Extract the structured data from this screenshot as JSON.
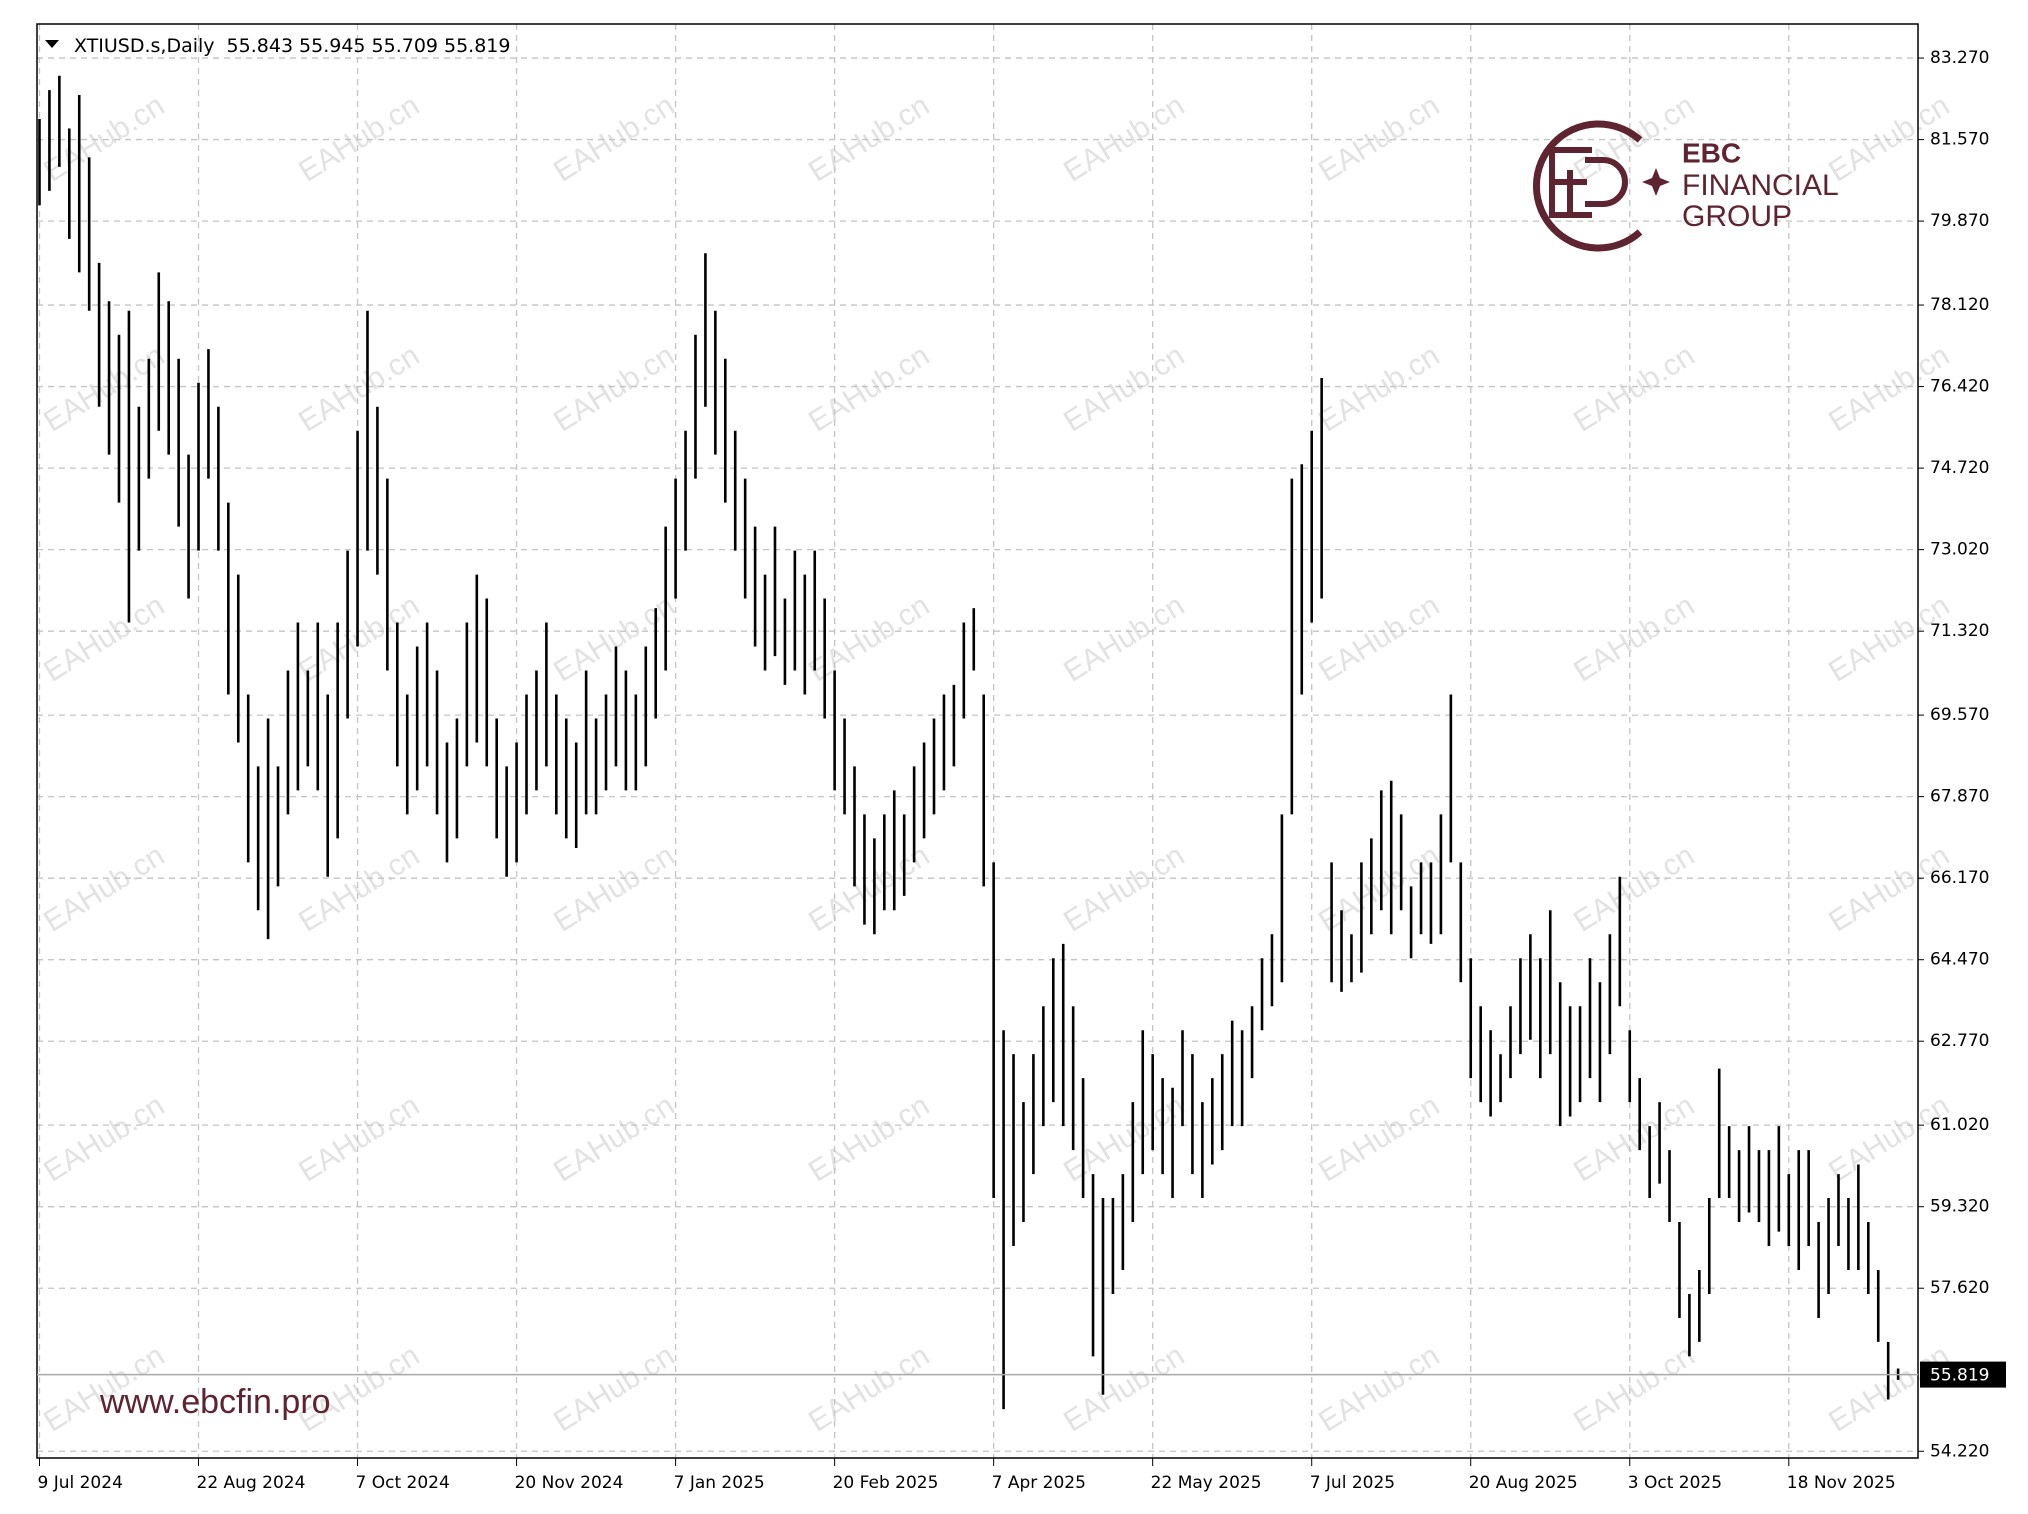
{
  "chart_data": {
    "type": "ohlc",
    "symbol": "XTIUSD.s,Daily",
    "last": {
      "open": 55.843,
      "high": 55.945,
      "low": 55.709,
      "close": 55.819
    },
    "current_price": 55.819,
    "color": "#000000",
    "grid": true,
    "watermark": "EAHub.cn",
    "brand": {
      "line1": "EBC",
      "line2": "FINANCIAL",
      "line3": "GROUP",
      "url": "www.ebcfin.pro"
    },
    "xlim": [
      -0.5,
      378
    ],
    "xticks": [
      {
        "value": 0,
        "label": "9 Jul 2024"
      },
      {
        "value": 32,
        "label": "22 Aug 2024"
      },
      {
        "value": 64,
        "label": "7 Oct 2024"
      },
      {
        "value": 96,
        "label": "20 Nov 2024"
      },
      {
        "value": 128,
        "label": "7 Jan 2025"
      },
      {
        "value": 160,
        "label": "20 Feb 2025"
      },
      {
        "value": 192,
        "label": "7 Apr 2025"
      },
      {
        "value": 224,
        "label": "22 May 2025"
      },
      {
        "value": 256,
        "label": "7 Jul 2025"
      },
      {
        "value": 288,
        "label": "20 Aug 2025"
      },
      {
        "value": 320,
        "label": "3 Oct 2025"
      },
      {
        "value": 352,
        "label": "18 Nov 2025"
      }
    ],
    "ylim": [
      54.08,
      83.98
    ],
    "yticks": [
      {
        "value": 83.27,
        "label": "83.270"
      },
      {
        "value": 81.57,
        "label": "81.570"
      },
      {
        "value": 79.87,
        "label": "79.870"
      },
      {
        "value": 78.12,
        "label": "78.120"
      },
      {
        "value": 76.42,
        "label": "76.420"
      },
      {
        "value": 74.72,
        "label": "74.720"
      },
      {
        "value": 73.02,
        "label": "73.020"
      },
      {
        "value": 71.32,
        "label": "71.320"
      },
      {
        "value": 69.57,
        "label": "69.570"
      },
      {
        "value": 67.87,
        "label": "67.870"
      },
      {
        "value": 66.17,
        "label": "66.170"
      },
      {
        "value": 64.47,
        "label": "64.470"
      },
      {
        "value": 62.77,
        "label": "62.770"
      },
      {
        "value": 61.02,
        "label": "61.020"
      },
      {
        "value": 59.32,
        "label": "59.320"
      },
      {
        "value": 57.62,
        "label": "57.620"
      },
      {
        "value": 54.22,
        "label": "54.220"
      }
    ],
    "x": [
      0,
      2,
      4,
      6,
      8,
      10,
      12,
      14,
      16,
      18,
      20,
      22,
      24,
      26,
      28,
      30,
      32,
      34,
      36,
      38,
      40,
      42,
      44,
      46,
      48,
      50,
      52,
      54,
      56,
      58,
      60,
      62,
      64,
      66,
      68,
      70,
      72,
      74,
      76,
      78,
      80,
      82,
      84,
      86,
      88,
      90,
      92,
      94,
      96,
      98,
      100,
      102,
      104,
      106,
      108,
      110,
      112,
      114,
      116,
      118,
      120,
      122,
      124,
      126,
      128,
      130,
      132,
      134,
      136,
      138,
      140,
      142,
      144,
      146,
      148,
      150,
      152,
      154,
      156,
      158,
      160,
      162,
      164,
      166,
      168,
      170,
      172,
      174,
      176,
      178,
      180,
      182,
      184,
      186,
      188,
      190,
      192,
      194,
      196,
      198,
      200,
      202,
      204,
      206,
      208,
      210,
      212,
      214,
      216,
      218,
      220,
      222,
      224,
      226,
      228,
      230,
      232,
      234,
      236,
      238,
      240,
      242,
      244,
      246,
      248,
      250,
      252,
      254,
      256,
      258,
      260,
      262,
      264,
      266,
      268,
      270,
      272,
      274,
      276,
      278,
      280,
      282,
      284,
      286,
      288,
      290,
      292,
      294,
      296,
      298,
      300,
      302,
      304,
      306,
      308,
      310,
      312,
      314,
      316,
      318,
      320,
      322,
      324,
      326,
      328,
      330,
      332,
      334,
      336,
      338,
      340,
      342,
      344,
      346,
      348,
      350,
      352,
      354,
      356,
      358,
      360,
      362,
      364,
      366,
      368,
      370,
      372,
      374
    ],
    "high": [
      82.0,
      82.6,
      82.9,
      81.8,
      82.5,
      81.2,
      79.0,
      78.2,
      77.5,
      78.0,
      76.0,
      77.0,
      78.8,
      78.2,
      77.0,
      75.0,
      76.5,
      77.2,
      76.0,
      74.0,
      72.5,
      70.0,
      68.5,
      69.5,
      68.5,
      70.5,
      71.5,
      70.5,
      71.5,
      70.0,
      71.5,
      73.0,
      75.5,
      78.0,
      76.0,
      74.5,
      71.5,
      70.0,
      71.0,
      71.5,
      70.5,
      69.0,
      69.5,
      71.5,
      72.5,
      72.0,
      69.5,
      68.5,
      69.0,
      70.0,
      70.5,
      71.5,
      70.0,
      69.5,
      69.0,
      70.5,
      69.5,
      70.0,
      71.0,
      70.5,
      70.0,
      71.0,
      71.8,
      73.5,
      74.5,
      75.5,
      77.5,
      79.2,
      78.0,
      77.0,
      75.5,
      74.5,
      73.5,
      72.5,
      73.5,
      72.0,
      73.0,
      72.5,
      73.0,
      72.0,
      70.5,
      69.5,
      68.5,
      67.5,
      67.0,
      67.5,
      68.0,
      67.5,
      68.5,
      69.0,
      69.5,
      70.0,
      70.2,
      71.5,
      71.8,
      70.0,
      66.5,
      63.0,
      62.5,
      61.5,
      62.5,
      63.5,
      64.5,
      64.8,
      63.5,
      62.0,
      60.0,
      59.5,
      59.5,
      60.0,
      61.5,
      63.0,
      62.5,
      62.0,
      61.8,
      63.0,
      62.5,
      61.5,
      62.0,
      62.5,
      63.2,
      63.0,
      63.5,
      64.5,
      65.0,
      67.5,
      74.5,
      74.8,
      75.5,
      76.6,
      66.5,
      65.5,
      65.0,
      66.5,
      67.0,
      68.0,
      68.2,
      67.5,
      66.0,
      66.5,
      66.5,
      67.5,
      70.0,
      66.5,
      64.5,
      63.5,
      63.0,
      62.5,
      63.5,
      64.5,
      65.0,
      64.5,
      65.5,
      64.0,
      63.5,
      63.5,
      64.5,
      64.0,
      65.0,
      66.2,
      63.0,
      62.0,
      61.0,
      61.5,
      60.5,
      59.0,
      57.5,
      58.0,
      59.5,
      62.2,
      61.0,
      60.5,
      61.0,
      60.5,
      60.5,
      61.0,
      60.0,
      60.5,
      60.5,
      59.0,
      59.5,
      60.0,
      59.5,
      60.2,
      59.0,
      58.0,
      56.5,
      55.945
    ],
    "low": [
      80.2,
      80.5,
      81.0,
      79.5,
      78.8,
      78.0,
      76.0,
      75.0,
      74.0,
      71.5,
      73.0,
      74.5,
      75.5,
      75.0,
      73.5,
      72.0,
      73.0,
      74.5,
      73.0,
      70.0,
      69.0,
      66.5,
      65.5,
      64.9,
      66.0,
      67.5,
      68.0,
      68.5,
      68.0,
      66.2,
      67.0,
      69.5,
      71.0,
      73.0,
      72.5,
      70.5,
      68.5,
      67.5,
      68.0,
      68.5,
      67.5,
      66.5,
      67.0,
      68.5,
      69.0,
      68.5,
      67.0,
      66.2,
      66.5,
      67.5,
      68.0,
      68.5,
      67.5,
      67.0,
      66.8,
      67.5,
      67.5,
      68.0,
      68.5,
      68.0,
      68.0,
      68.5,
      69.5,
      70.5,
      72.0,
      73.0,
      74.5,
      76.0,
      75.0,
      74.0,
      73.0,
      72.0,
      71.0,
      70.5,
      70.8,
      70.2,
      70.5,
      70.0,
      70.5,
      69.5,
      68.0,
      67.5,
      66.0,
      65.2,
      65.0,
      65.5,
      65.5,
      65.8,
      66.5,
      67.0,
      67.5,
      68.0,
      68.5,
      69.5,
      70.5,
      66.0,
      59.5,
      55.1,
      58.5,
      59.0,
      60.0,
      61.0,
      61.5,
      61.0,
      60.5,
      59.5,
      56.2,
      55.4,
      57.5,
      58.0,
      59.0,
      60.0,
      60.5,
      60.0,
      59.5,
      61.0,
      60.0,
      59.5,
      60.2,
      60.5,
      61.0,
      61.0,
      62.0,
      63.0,
      63.5,
      64.0,
      67.5,
      70.0,
      71.5,
      72.0,
      64.0,
      63.8,
      64.0,
      64.2,
      65.0,
      65.5,
      65.0,
      65.5,
      64.5,
      65.0,
      64.8,
      65.0,
      66.5,
      64.0,
      62.0,
      61.5,
      61.2,
      61.5,
      62.0,
      62.5,
      62.8,
      62.0,
      62.5,
      61.0,
      61.2,
      61.5,
      62.0,
      61.5,
      62.5,
      63.5,
      61.5,
      60.5,
      59.5,
      59.8,
      59.0,
      57.0,
      56.2,
      56.5,
      57.5,
      59.5,
      59.5,
      59.0,
      59.2,
      59.0,
      58.5,
      58.8,
      58.5,
      58.0,
      58.5,
      57.0,
      57.5,
      58.5,
      58.0,
      58.0,
      57.5,
      56.5,
      55.3,
      55.709
    ]
  }
}
